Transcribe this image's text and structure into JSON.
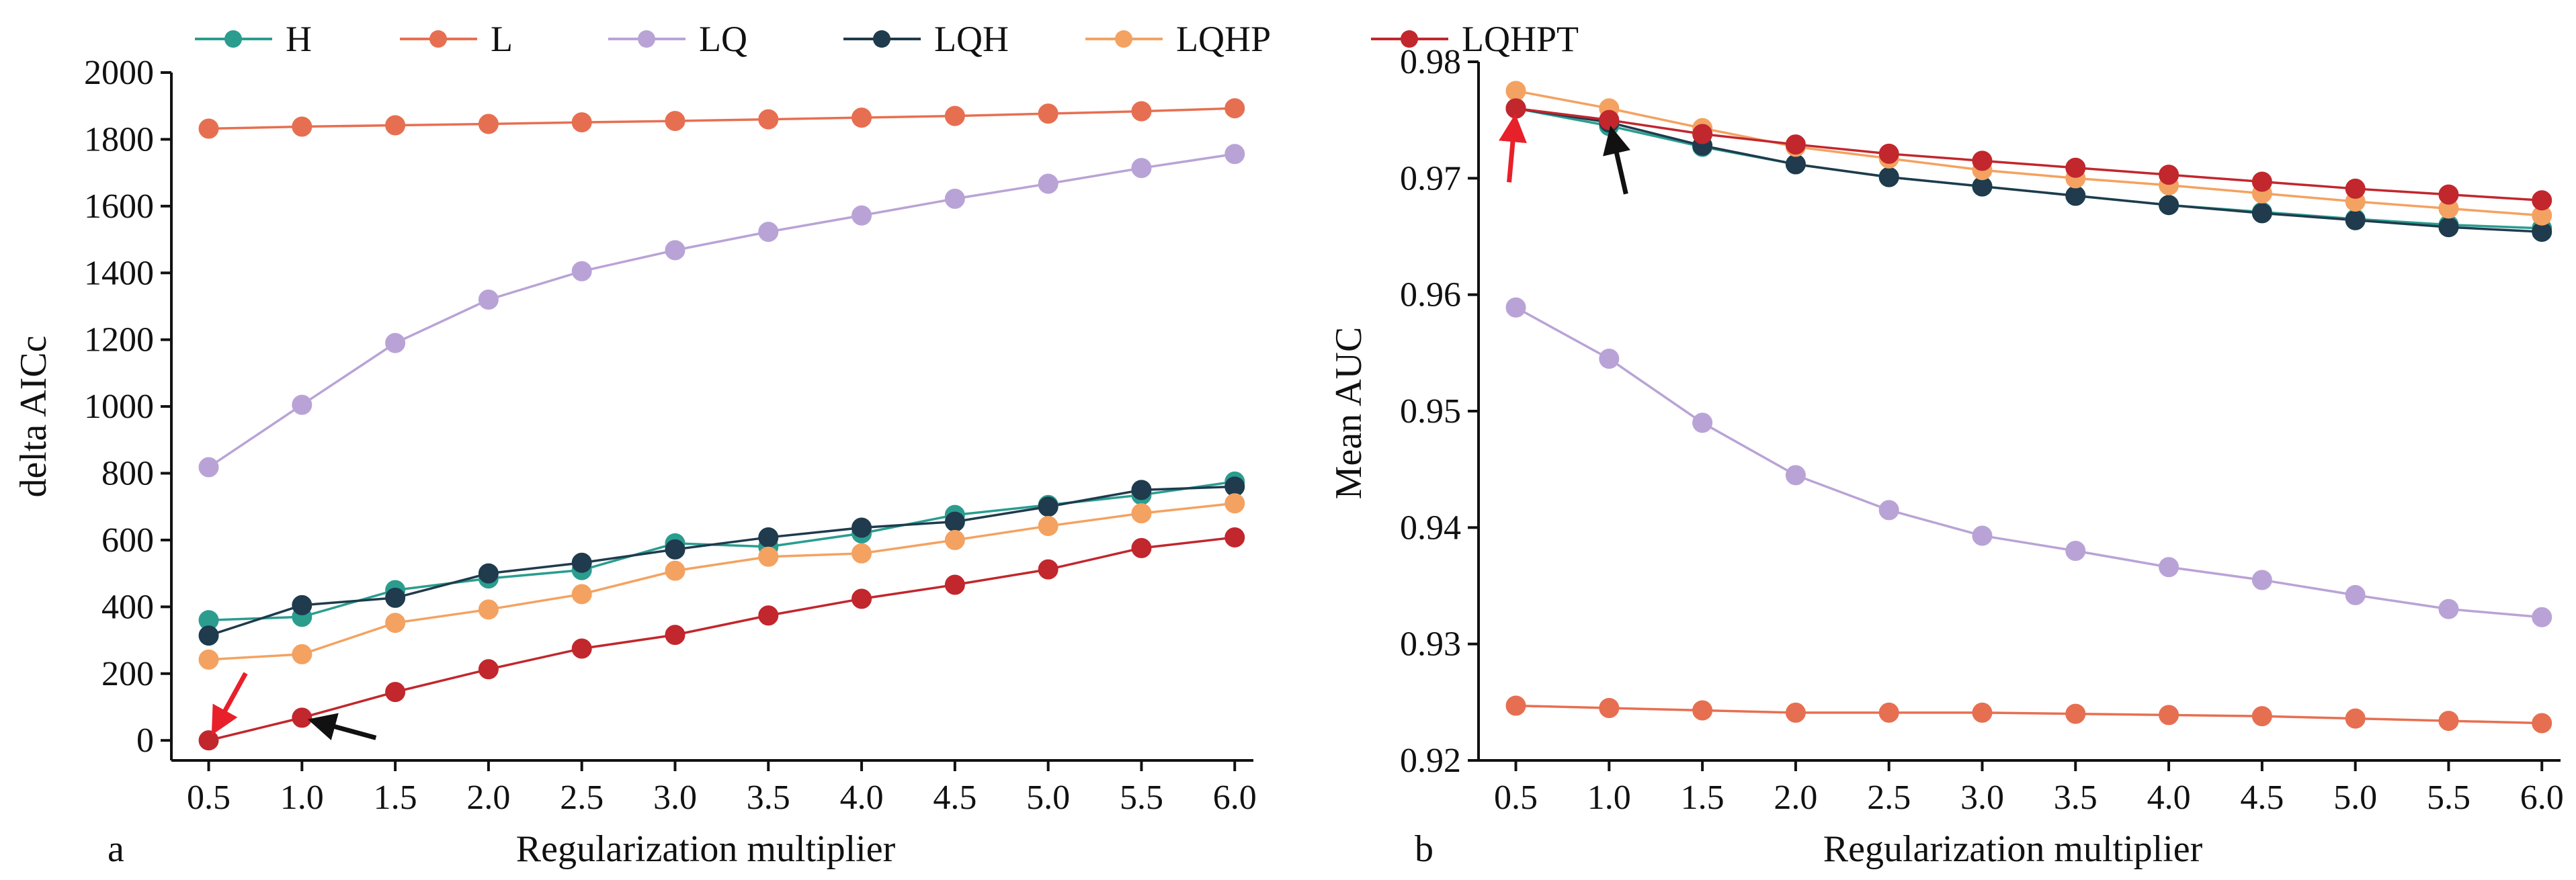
{
  "legend": {
    "entries": [
      {
        "name": "H",
        "color": "#2a9d8f"
      },
      {
        "name": "L",
        "color": "#e76f51"
      },
      {
        "name": "LQ",
        "color": "#b9a3d6"
      },
      {
        "name": "LQH",
        "color": "#1f3b4d"
      },
      {
        "name": "LQHP",
        "color": "#f4a261"
      },
      {
        "name": "LQHPT",
        "color": "#c1272d"
      }
    ]
  },
  "chart_data": [
    {
      "panel": "a",
      "type": "line",
      "xlabel": "Regularization multiplier",
      "ylabel": "delta AICc",
      "x": [
        0.5,
        1.0,
        1.5,
        2.0,
        2.5,
        3.0,
        3.5,
        4.0,
        4.5,
        5.0,
        5.5,
        6.0
      ],
      "x_tick_labels": [
        "0.5",
        "1.0",
        "1.5",
        "2.0",
        "2.5",
        "3.0",
        "3.5",
        "4.0",
        "4.5",
        "5.0",
        "5.5",
        "6.0"
      ],
      "xlim": [
        0.3,
        6.1
      ],
      "ylim": [
        -60,
        2000
      ],
      "y_ticks": [
        0,
        200,
        400,
        600,
        800,
        1000,
        1200,
        1400,
        1600,
        1800,
        2000
      ],
      "y_tick_labels": [
        "0",
        "200",
        "400",
        "600",
        "800",
        "1000",
        "1200",
        "1400",
        "1600",
        "1800",
        "2000"
      ],
      "series": [
        {
          "name": "H",
          "color": "#2a9d8f",
          "values": [
            360,
            370,
            450,
            485,
            510,
            590,
            580,
            620,
            675,
            705,
            735,
            775
          ]
        },
        {
          "name": "L",
          "color": "#e76f51",
          "values": [
            1832,
            1838,
            1842,
            1846,
            1851,
            1855,
            1860,
            1865,
            1870,
            1877,
            1884,
            1893
          ]
        },
        {
          "name": "LQ",
          "color": "#b9a3d6",
          "values": [
            818,
            1005,
            1190,
            1320,
            1405,
            1468,
            1523,
            1572,
            1622,
            1667,
            1714,
            1756
          ]
        },
        {
          "name": "LQH",
          "color": "#1f3b4d",
          "values": [
            314,
            405,
            427,
            500,
            532,
            572,
            608,
            637,
            655,
            700,
            750,
            760
          ]
        },
        {
          "name": "LQHP",
          "color": "#f4a261",
          "values": [
            242,
            258,
            352,
            392,
            438,
            508,
            550,
            560,
            600,
            642,
            680,
            710
          ]
        },
        {
          "name": "LQHPT",
          "color": "#c1272d",
          "values": [
            0,
            68,
            145,
            213,
            275,
            316,
            374,
            424,
            466,
            512,
            576,
            608
          ]
        }
      ],
      "annotations": [
        {
          "type": "arrow",
          "color": "red",
          "target_x": 0.5,
          "target_y": 0
        },
        {
          "type": "arrow",
          "color": "black",
          "target_x": 1.0,
          "target_y": 68
        }
      ]
    },
    {
      "panel": "b",
      "type": "line",
      "xlabel": "Regularization multiplier",
      "ylabel": "Mean AUC",
      "x": [
        0.5,
        1.0,
        1.5,
        2.0,
        2.5,
        3.0,
        3.5,
        4.0,
        4.5,
        5.0,
        5.5,
        6.0
      ],
      "x_tick_labels": [
        "0.5",
        "1.0",
        "1.5",
        "2.0",
        "2.5",
        "3.0",
        "3.5",
        "4.0",
        "4.5",
        "5.0",
        "5.5",
        "6.0"
      ],
      "xlim": [
        0.3,
        6.1
      ],
      "ylim": [
        0.92,
        0.98
      ],
      "y_ticks": [
        0.92,
        0.93,
        0.94,
        0.95,
        0.96,
        0.97,
        0.98
      ],
      "y_tick_labels": [
        "0.92",
        "0.93",
        "0.94",
        "0.95",
        "0.96",
        "0.97",
        "0.98"
      ],
      "series": [
        {
          "name": "H",
          "color": "#2a9d8f",
          "values": [
            0.976,
            0.9745,
            0.9727,
            0.9712,
            0.9701,
            0.9693,
            0.9685,
            0.9677,
            0.9671,
            0.9665,
            0.966,
            0.9657
          ]
        },
        {
          "name": "L",
          "color": "#e76f51",
          "values": [
            0.9247,
            0.9245,
            0.9243,
            0.9241,
            0.9241,
            0.9241,
            0.924,
            0.9239,
            0.9238,
            0.9236,
            0.9234,
            0.9232
          ]
        },
        {
          "name": "LQ",
          "color": "#b9a3d6",
          "values": [
            0.9589,
            0.9545,
            0.949,
            0.9445,
            0.9415,
            0.9393,
            0.938,
            0.9366,
            0.9355,
            0.9342,
            0.933,
            0.9323
          ]
        },
        {
          "name": "LQH",
          "color": "#1f3b4d",
          "values": [
            0.976,
            0.9748,
            0.9728,
            0.9712,
            0.9701,
            0.9693,
            0.9685,
            0.9677,
            0.967,
            0.9664,
            0.9658,
            0.9654
          ]
        },
        {
          "name": "LQHP",
          "color": "#f4a261",
          "values": [
            0.9775,
            0.976,
            0.9743,
            0.9727,
            0.9717,
            0.9707,
            0.97,
            0.9694,
            0.9687,
            0.968,
            0.9674,
            0.9668
          ]
        },
        {
          "name": "LQHPT",
          "color": "#c1272d",
          "values": [
            0.976,
            0.975,
            0.9738,
            0.9729,
            0.9721,
            0.9715,
            0.9709,
            0.9703,
            0.9697,
            0.9691,
            0.9686,
            0.9681
          ]
        }
      ],
      "annotations": [
        {
          "type": "arrow",
          "color": "red",
          "target_x": 0.5,
          "target_y": 0.976
        },
        {
          "type": "arrow",
          "color": "black",
          "target_x": 1.0,
          "target_y": 0.975
        }
      ]
    }
  ]
}
